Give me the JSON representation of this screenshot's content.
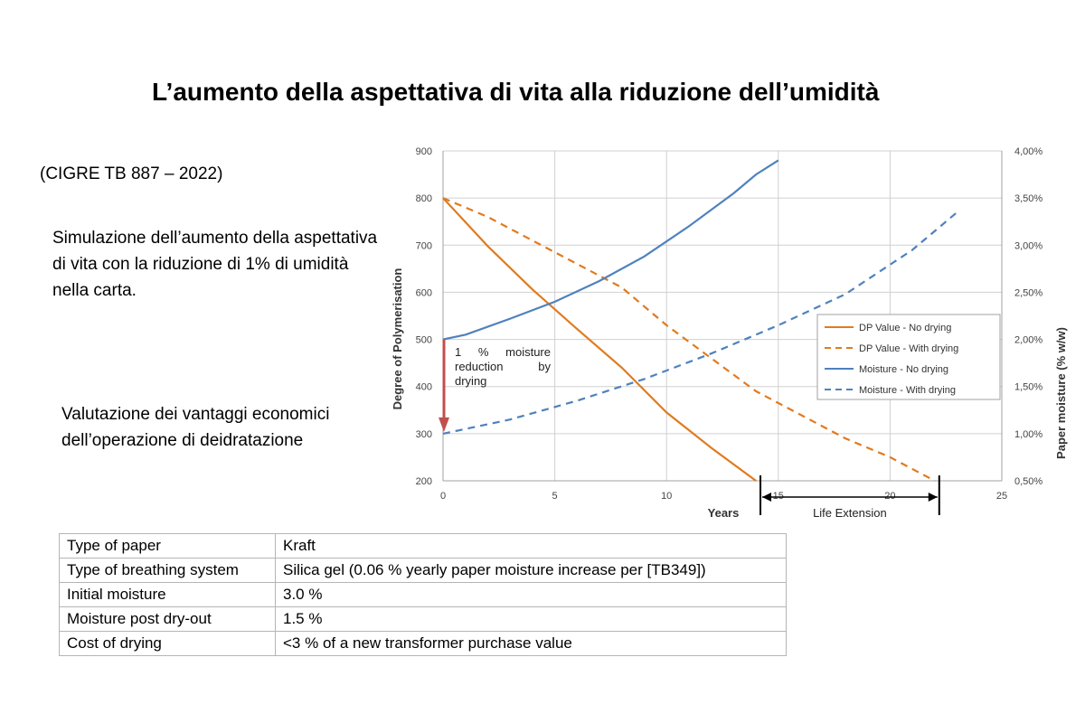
{
  "slide": {
    "title": "L’aumento della aspettativa di vita alla riduzione dell’umidità",
    "source": "(CIGRE TB 887 – 2022)",
    "simulation_text": "Simulazione dell’aumento della aspettativa di vita con la riduzione di 1% di umidità nella carta.",
    "valuation_text": "Valutazione dei vantaggi economici dell’operazione di deidratazione"
  },
  "table": {
    "rows": [
      {
        "label": "Type of paper",
        "value": "Kraft"
      },
      {
        "label": "Type of breathing system",
        "value": "Silica gel (0.06 % yearly paper moisture increase per [TB349])"
      },
      {
        "label": "Initial moisture",
        "value": "3.0 %"
      },
      {
        "label": "Moisture post dry-out",
        "value": "1.5 %"
      },
      {
        "label": "Cost of drying",
        "value": " <3 % of a new transformer purchase value"
      }
    ]
  },
  "chart_data": {
    "type": "line",
    "xlabel": "Years",
    "ylabel": "Degree of Polymerisation",
    "y2label": "Paper moisture (% w/w)",
    "xlim": [
      0,
      25
    ],
    "ylim": [
      200,
      900
    ],
    "y2lim": [
      0.5,
      4.0
    ],
    "x_ticks": [
      "0",
      "5",
      "10",
      "15",
      "20",
      "25"
    ],
    "y_ticks": [
      "200",
      "300",
      "400",
      "500",
      "600",
      "700",
      "800",
      "900"
    ],
    "y2_ticks": [
      "0,50%",
      "1,00%",
      "1,50%",
      "2,00%",
      "2,50%",
      "3,00%",
      "3,50%",
      "4,00%"
    ],
    "grid": true,
    "legend_position": "right",
    "colors": {
      "dp": "#e07b1f",
      "moisture": "#4f81bd",
      "arrow": "#c0504d"
    },
    "series": [
      {
        "name": "DP Value - No drying",
        "axis": "left",
        "dashed": false,
        "color": "#e07b1f",
        "x": [
          0,
          2,
          4,
          6,
          8,
          10,
          12,
          14
        ],
        "y": [
          800,
          698,
          606,
          522,
          440,
          345,
          270,
          200
        ]
      },
      {
        "name": "DP Value - With drying",
        "axis": "left",
        "dashed": true,
        "color": "#e07b1f",
        "x": [
          0,
          2,
          4,
          6,
          8,
          10,
          12,
          14,
          16,
          18,
          20,
          22
        ],
        "y": [
          800,
          760,
          710,
          660,
          610,
          530,
          460,
          390,
          340,
          290,
          250,
          200
        ]
      },
      {
        "name": "Moisture - No drying",
        "axis": "right",
        "dashed": false,
        "color": "#4f81bd",
        "x": [
          0,
          1,
          3,
          5,
          7,
          9,
          11,
          13,
          14,
          15
        ],
        "y": [
          2.0,
          2.05,
          2.22,
          2.4,
          2.62,
          2.88,
          3.2,
          3.55,
          3.75,
          3.9
        ]
      },
      {
        "name": "Moisture - With drying",
        "axis": "right",
        "dashed": true,
        "color": "#4f81bd",
        "x": [
          0,
          3,
          6,
          9,
          12,
          15,
          18,
          21,
          23
        ],
        "y": [
          1.0,
          1.15,
          1.35,
          1.58,
          1.85,
          2.15,
          2.48,
          2.95,
          3.35
        ]
      }
    ],
    "annotations": {
      "moisture_reduction": "1 % moisture reduction by drying",
      "life_extension": "Life Extension",
      "life_extension_range": [
        14.2,
        22.2
      ]
    }
  }
}
